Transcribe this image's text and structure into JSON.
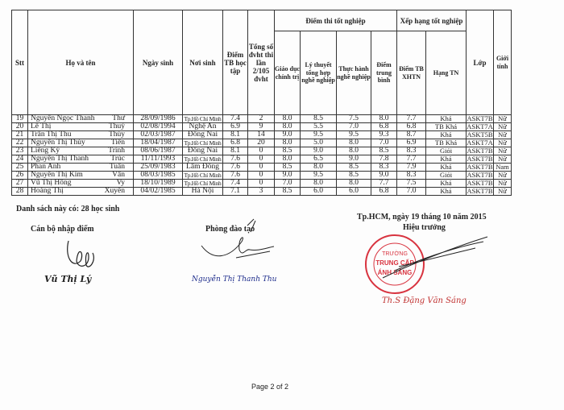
{
  "table": {
    "headers": {
      "stt": "Stt",
      "name": "Họ và tên",
      "dob": "Ngày sinh",
      "birthplace": "Nơi sinh",
      "gpa": "Điểm TB học tập",
      "credits": "Tổng số đvht thi lần 2/105 đvht",
      "exam_group": "Điểm thi tốt nghiệp",
      "politics": "Giáo dục chính trị",
      "theory": "Lý thuyết tổng hợp nghề nghiệp",
      "practice": "Thực hành nghề nghiệp",
      "avg": "Điểm trung bình",
      "rank_group": "Xếp hạng tốt nghiệp",
      "xhtn": "Điểm TB XHTN",
      "rank": "Hạng TN",
      "class": "Lớp",
      "gender": "Giới tính"
    },
    "rows": [
      {
        "stt": "19",
        "last": "Nguyễn Ngọc Thanh",
        "first": "Thư",
        "dob": "28/09/1986",
        "place": "Tp.Hồ Chí Minh",
        "gpa": "7.4",
        "credits": "2",
        "politics": "8.0",
        "theory": "8.5",
        "practice": "7.5",
        "avg": "8.0",
        "xhtn": "7.7",
        "rank": "Khá",
        "class": "ASKT7B",
        "gender": "Nữ"
      },
      {
        "stt": "20",
        "last": "Lê Thị",
        "first": "Thuý",
        "dob": "02/08/1994",
        "place": "Nghệ An",
        "gpa": "6.9",
        "credits": "9",
        "politics": "8.0",
        "theory": "5.5",
        "practice": "7.0",
        "avg": "6.8",
        "xhtn": "6.8",
        "rank": "TB Khá",
        "class": "ASKT7A",
        "gender": "Nữ"
      },
      {
        "stt": "21",
        "last": "Trần Thị Thu",
        "first": "Thùy",
        "dob": "02/03/1987",
        "place": "Đồng Nai",
        "gpa": "8.1",
        "credits": "14",
        "politics": "9.0",
        "theory": "9.5",
        "practice": "9.5",
        "avg": "9.3",
        "xhtn": "8.7",
        "rank": "Khá",
        "class": "ASKT5B",
        "gender": "Nữ"
      },
      {
        "stt": "22",
        "last": "Nguyễn Thị Thùy",
        "first": "Tiên",
        "dob": "18/04/1987",
        "place": "Tp.Hồ Chí Minh",
        "gpa": "6.8",
        "credits": "20",
        "politics": "8.0",
        "theory": "5.0",
        "practice": "8.0",
        "avg": "7.0",
        "xhtn": "6.9",
        "rank": "TB Khá",
        "class": "ASKT7A",
        "gender": "Nữ"
      },
      {
        "stt": "23",
        "last": "Liềng Ký",
        "first": "Trinh",
        "dob": "08/06/1987",
        "place": "Đồng Nai",
        "gpa": "8.1",
        "credits": "0",
        "politics": "8.5",
        "theory": "9.0",
        "practice": "8.0",
        "avg": "8.5",
        "xhtn": "8.3",
        "rank": "Giỏi",
        "class": "ASKT7B",
        "gender": "Nữ"
      },
      {
        "stt": "24",
        "last": "Nguyễn Thị Thanh",
        "first": "Trúc",
        "dob": "11/11/1993",
        "place": "Tp.Hồ Chí Minh",
        "gpa": "7.6",
        "credits": "0",
        "politics": "8.0",
        "theory": "6.5",
        "practice": "9.0",
        "avg": "7.8",
        "xhtn": "7.7",
        "rank": "Khá",
        "class": "ASKT7B",
        "gender": "Nữ"
      },
      {
        "stt": "25",
        "last": "Phan Anh",
        "first": "Tuấn",
        "dob": "25/09/1983",
        "place": "Lâm Đồng",
        "gpa": "7.6",
        "credits": "0",
        "politics": "8.5",
        "theory": "8.0",
        "practice": "8.5",
        "avg": "8.3",
        "xhtn": "7.9",
        "rank": "Khá",
        "class": "ASKT7B",
        "gender": "Nam"
      },
      {
        "stt": "26",
        "last": "Nguyễn Thị Kim",
        "first": "Vân",
        "dob": "08/03/1985",
        "place": "Tp.Hồ Chí Minh",
        "gpa": "7.6",
        "credits": "0",
        "politics": "9.0",
        "theory": "9.5",
        "practice": "8.5",
        "avg": "9.0",
        "xhtn": "8.3",
        "rank": "Giỏi",
        "class": "ASKT7B",
        "gender": "Nữ"
      },
      {
        "stt": "27",
        "last": "Vũ Thị Hồng",
        "first": "Vy",
        "dob": "18/10/1989",
        "place": "Tp.Hồ Chí Minh",
        "gpa": "7.4",
        "credits": "0",
        "politics": "7.0",
        "theory": "8.0",
        "practice": "8.0",
        "avg": "7.7",
        "xhtn": "7.5",
        "rank": "Khá",
        "class": "ASKT7B",
        "gender": "Nữ"
      },
      {
        "stt": "28",
        "last": "Hoàng Thị",
        "first": "Xuyến",
        "dob": "04/02/1985",
        "place": "Hà Nội",
        "gpa": "7.1",
        "credits": "3",
        "politics": "8.5",
        "theory": "6.0",
        "practice": "6.0",
        "avg": "6.8",
        "xhtn": "7.0",
        "rank": "Khá",
        "class": "ASKT7B",
        "gender": "Nữ"
      }
    ]
  },
  "summary": "Danh sách này có: 28 học sinh",
  "signatures": {
    "entry_clerk_title": "Cán bộ nhập điểm",
    "entry_clerk_name": "Vũ Thị Lý",
    "training_title": "Phòng đào tạo",
    "training_name": "Nguyễn Thị Thanh Thu",
    "date_line": "Tp.HCM, ngày 19 tháng 10 năm 2015",
    "principal_title": "Hiệu trưởng",
    "principal_name": "Th.S Đặng Văn Sáng",
    "stamp_text": [
      "SỞ GIÁO DỤC VÀ ĐÀO TẠO",
      "TRƯỜNG",
      "TRUNG CẤP",
      "ÁNH SÁNG",
      "THÀNH PHỐ HỒ CHÍ MINH"
    ]
  },
  "footer": {
    "page": "Page 2 of 2"
  },
  "colors": {
    "stamp": "#d8333f",
    "signature_ink": "#1b2a8a"
  }
}
